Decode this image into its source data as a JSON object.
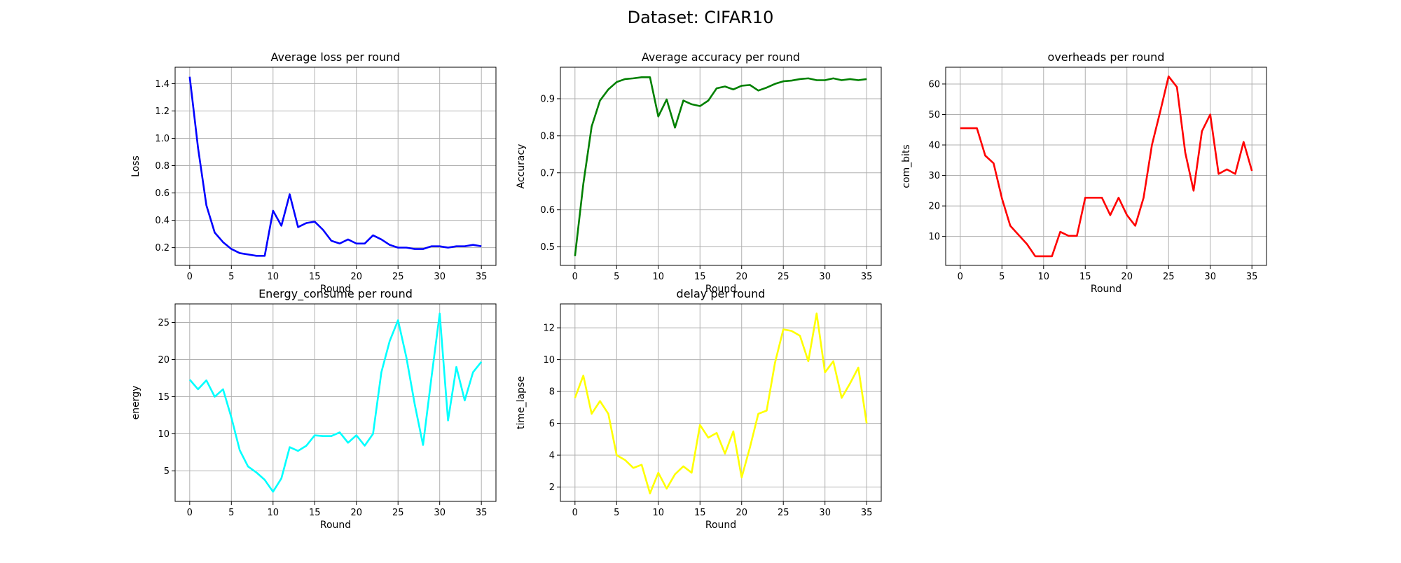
{
  "suptitle": "Dataset: CIFAR10",
  "chart_data": [
    {
      "type": "line",
      "title": "Average loss per round",
      "xlabel": "Round",
      "ylabel": "Loss",
      "color": "#0000ff",
      "xlim": [
        -1.75,
        36.75
      ],
      "ylim": [
        0.07,
        1.52
      ],
      "xticks": [
        0,
        5,
        10,
        15,
        20,
        25,
        30,
        35
      ],
      "yticks": [
        0.2,
        0.4,
        0.6,
        0.8,
        1.0,
        1.2,
        1.4
      ],
      "ytick_labels": [
        "0.2",
        "0.4",
        "0.6",
        "0.8",
        "1.0",
        "1.2",
        "1.4"
      ],
      "grid": true,
      "x": [
        0,
        1,
        2,
        3,
        4,
        5,
        6,
        7,
        8,
        9,
        10,
        11,
        12,
        13,
        14,
        15,
        16,
        17,
        18,
        19,
        20,
        21,
        22,
        23,
        24,
        25,
        26,
        27,
        28,
        29,
        30,
        31,
        32,
        33,
        34,
        35
      ],
      "values": [
        1.45,
        0.93,
        0.51,
        0.31,
        0.24,
        0.19,
        0.16,
        0.15,
        0.14,
        0.14,
        0.47,
        0.36,
        0.59,
        0.35,
        0.38,
        0.39,
        0.33,
        0.25,
        0.23,
        0.26,
        0.23,
        0.23,
        0.29,
        0.26,
        0.22,
        0.2,
        0.2,
        0.19,
        0.19,
        0.21,
        0.21,
        0.2,
        0.21,
        0.21,
        0.22,
        0.21
      ]
    },
    {
      "type": "line",
      "title": "Average accuracy per round",
      "xlabel": "Round",
      "ylabel": "Accuracy",
      "color": "#008000",
      "xlim": [
        -1.75,
        36.75
      ],
      "ylim": [
        0.45,
        0.985
      ],
      "xticks": [
        0,
        5,
        10,
        15,
        20,
        25,
        30,
        35
      ],
      "yticks": [
        0.5,
        0.6,
        0.7,
        0.8,
        0.9
      ],
      "ytick_labels": [
        "0.5",
        "0.6",
        "0.7",
        "0.8",
        "0.9"
      ],
      "grid": true,
      "x": [
        0,
        1,
        2,
        3,
        4,
        5,
        6,
        7,
        8,
        9,
        10,
        11,
        12,
        13,
        14,
        15,
        16,
        17,
        18,
        19,
        20,
        21,
        22,
        23,
        24,
        25,
        26,
        27,
        28,
        29,
        30,
        31,
        32,
        33,
        34,
        35
      ],
      "values": [
        0.475,
        0.67,
        0.825,
        0.895,
        0.925,
        0.945,
        0.953,
        0.955,
        0.958,
        0.958,
        0.852,
        0.898,
        0.822,
        0.895,
        0.885,
        0.88,
        0.895,
        0.928,
        0.933,
        0.925,
        0.935,
        0.937,
        0.922,
        0.93,
        0.94,
        0.947,
        0.949,
        0.953,
        0.955,
        0.95,
        0.95,
        0.955,
        0.95,
        0.953,
        0.95,
        0.953
      ]
    },
    {
      "type": "line",
      "title": "overheads per round",
      "xlabel": "Round",
      "ylabel": "com_bits",
      "color": "#ff0000",
      "xlim": [
        -1.75,
        36.75
      ],
      "ylim": [
        0.5,
        65.5
      ],
      "xticks": [
        0,
        5,
        10,
        15,
        20,
        25,
        30,
        35
      ],
      "yticks": [
        10,
        20,
        30,
        40,
        50,
        60
      ],
      "ytick_labels": [
        "10",
        "20",
        "30",
        "40",
        "50",
        "60"
      ],
      "grid": true,
      "x": [
        0,
        1,
        2,
        3,
        4,
        5,
        6,
        7,
        8,
        9,
        10,
        11,
        12,
        13,
        14,
        15,
        16,
        17,
        18,
        19,
        20,
        21,
        22,
        23,
        24,
        25,
        26,
        27,
        28,
        29,
        30,
        31,
        32,
        33,
        34,
        35
      ],
      "values": [
        45.5,
        45.5,
        45.5,
        36.5,
        34.0,
        22.5,
        13.5,
        10.5,
        7.5,
        3.5,
        3.5,
        3.5,
        11.5,
        10.2,
        10.2,
        22.7,
        22.7,
        22.7,
        17.0,
        22.7,
        17.0,
        13.5,
        22.7,
        40.0,
        51.0,
        62.5,
        59.0,
        37.5,
        25.0,
        44.5,
        50.0,
        30.5,
        32.0,
        30.5,
        41.0,
        31.5
      ]
    },
    {
      "type": "line",
      "title": "Energy_consume per round",
      "xlabel": "Round",
      "ylabel": "energy",
      "color": "#00ffff",
      "xlim": [
        -1.75,
        36.75
      ],
      "ylim": [
        0.9,
        27.5
      ],
      "xticks": [
        0,
        5,
        10,
        15,
        20,
        25,
        30,
        35
      ],
      "yticks": [
        5,
        10,
        15,
        20,
        25
      ],
      "ytick_labels": [
        "5",
        "10",
        "15",
        "20",
        "25"
      ],
      "grid": true,
      "x": [
        0,
        1,
        2,
        3,
        4,
        5,
        6,
        7,
        8,
        9,
        10,
        11,
        12,
        13,
        14,
        15,
        16,
        17,
        18,
        19,
        20,
        21,
        22,
        23,
        24,
        25,
        26,
        27,
        28,
        29,
        30,
        31,
        32,
        33,
        34,
        35
      ],
      "values": [
        17.3,
        16.0,
        17.2,
        15.0,
        16.0,
        12.2,
        7.8,
        5.6,
        4.8,
        3.8,
        2.2,
        4.0,
        8.2,
        7.7,
        8.4,
        9.8,
        9.7,
        9.7,
        10.2,
        8.8,
        9.8,
        8.4,
        10.0,
        18.3,
        22.5,
        25.3,
        20.3,
        14.0,
        8.5,
        17.5,
        26.2,
        11.8,
        19.0,
        14.5,
        18.3,
        19.7
      ]
    },
    {
      "type": "line",
      "title": "delay per round",
      "xlabel": "Round",
      "ylabel": "time_lapse",
      "color": "#ffff00",
      "xlim": [
        -1.75,
        36.75
      ],
      "ylim": [
        1.1,
        13.5
      ],
      "xticks": [
        0,
        5,
        10,
        15,
        20,
        25,
        30,
        35
      ],
      "yticks": [
        2,
        4,
        6,
        8,
        10,
        12
      ],
      "ytick_labels": [
        "2",
        "4",
        "6",
        "8",
        "10",
        "12"
      ],
      "grid": true,
      "x": [
        0,
        1,
        2,
        3,
        4,
        5,
        6,
        7,
        8,
        9,
        10,
        11,
        12,
        13,
        14,
        15,
        16,
        17,
        18,
        19,
        20,
        21,
        22,
        23,
        24,
        25,
        26,
        27,
        28,
        29,
        30,
        31,
        32,
        33,
        34,
        35
      ],
      "values": [
        7.6,
        9.0,
        6.6,
        7.4,
        6.6,
        4.0,
        3.7,
        3.2,
        3.4,
        1.6,
        2.9,
        1.9,
        2.8,
        3.3,
        2.9,
        5.9,
        5.1,
        5.4,
        4.1,
        5.5,
        2.6,
        4.5,
        6.6,
        6.8,
        9.8,
        11.9,
        11.8,
        11.5,
        9.9,
        12.9,
        9.2,
        9.9,
        7.6,
        8.5,
        9.5,
        6.0
      ]
    }
  ]
}
